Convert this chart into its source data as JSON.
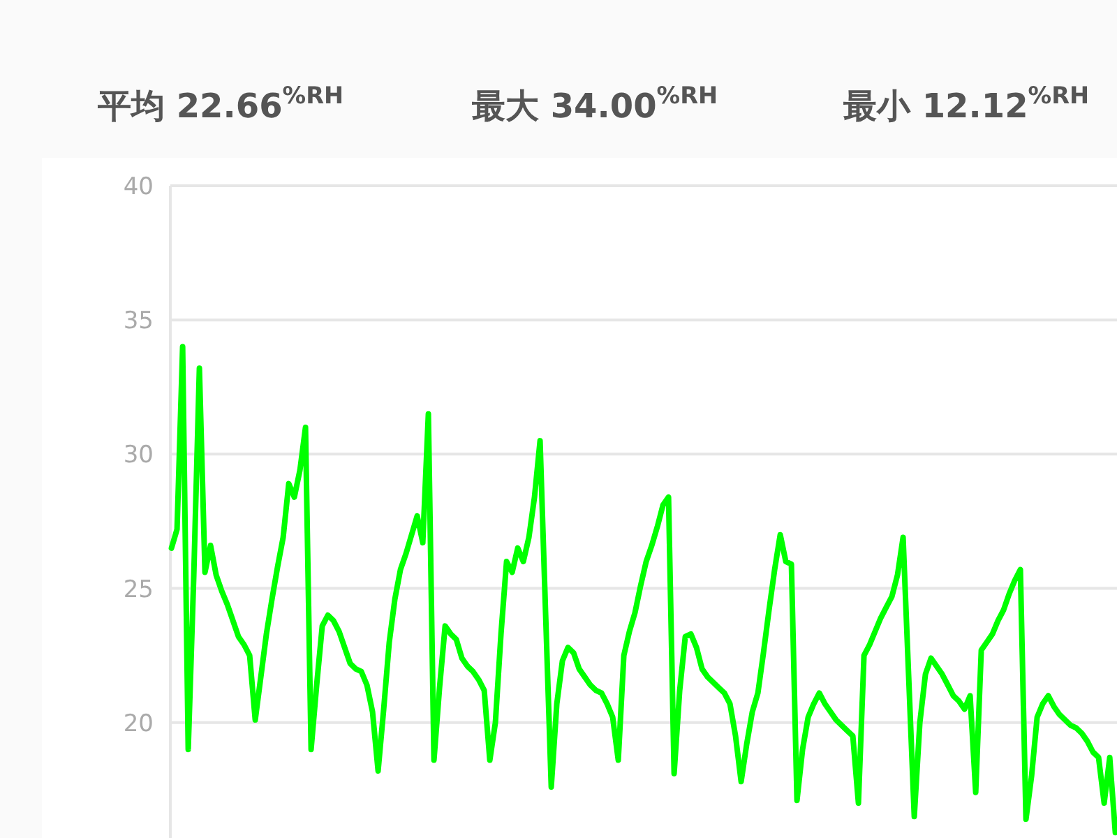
{
  "chart_data": {
    "type": "line",
    "annotations": [
      "平均 22.66$^{%RH}$",
      "最大 34.00$^{%RH}$",
      "最小 12.12$^{%RH}$"
    ],
    "categories": [
      null,
      null,
      null,
      null,
      null,
      null,
      null,
      null,
      null,
      null,
      null,
      null,
      null,
      null,
      null,
      null,
      null,
      null,
      null,
      null,
      null,
      null,
      null,
      null,
      null,
      null,
      null,
      null,
      null,
      null,
      null,
      null,
      null,
      null,
      null,
      null,
      null,
      null,
      null,
      null,
      null,
      null,
      null,
      null,
      null,
      null,
      null,
      null,
      null,
      null,
      null,
      null,
      null,
      null,
      null,
      null,
      null,
      null,
      null,
      null,
      null,
      null,
      null,
      null,
      null,
      null,
      null,
      null,
      null,
      null,
      null,
      null,
      null,
      null,
      null,
      null,
      null,
      null,
      null,
      null,
      null,
      null,
      null,
      null,
      null,
      null,
      null,
      null,
      null,
      null,
      null,
      null,
      null,
      null,
      null,
      null,
      null,
      null,
      null,
      null,
      null,
      null,
      null,
      null,
      null,
      null,
      null,
      null,
      null,
      null,
      null,
      null,
      null,
      null,
      null,
      null,
      null,
      null,
      null,
      null,
      null,
      null,
      null,
      null,
      null,
      null,
      null,
      null,
      null,
      null,
      null,
      null,
      null,
      null,
      null,
      null,
      null,
      null,
      null,
      null,
      null,
      null,
      null,
      null,
      null,
      null,
      null,
      null,
      null,
      null,
      null,
      null,
      null,
      null,
      null,
      null,
      null,
      null,
      null,
      null,
      null,
      null,
      null,
      null,
      null,
      null,
      null,
      null,
      null,
      null
    ],
    "values": [
      26.5,
      27.2,
      34.0,
      19.0,
      25.5,
      33.2,
      25.6,
      26.6,
      25.5,
      24.9,
      24.4,
      23.8,
      23.2,
      22.9,
      22.5,
      20.1,
      21.7,
      23.3,
      24.6,
      25.8,
      26.9,
      28.9,
      28.4,
      29.4,
      31.0,
      19.0,
      21.4,
      23.6,
      24.0,
      23.8,
      23.4,
      22.8,
      22.2,
      22.0,
      21.9,
      21.4,
      20.4,
      18.2,
      20.5,
      23.0,
      24.6,
      25.7,
      26.3,
      27.0,
      27.7,
      26.7,
      31.5,
      18.6,
      21.3,
      23.6,
      23.3,
      23.1,
      22.4,
      22.1,
      21.9,
      21.6,
      21.2,
      18.6,
      20.0,
      23.3,
      26.0,
      25.6,
      26.5,
      26.0,
      26.9,
      28.4,
      30.5,
      24.0,
      17.6,
      20.7,
      22.3,
      22.8,
      22.6,
      22.0,
      21.7,
      21.4,
      21.2,
      21.1,
      20.7,
      20.2,
      18.6,
      22.5,
      23.4,
      24.1,
      25.1,
      26.0,
      26.6,
      27.3,
      28.1,
      28.4,
      18.1,
      21.2,
      23.2,
      23.3,
      22.8,
      22.0,
      21.7,
      21.5,
      21.3,
      21.1,
      20.7,
      19.5,
      17.8,
      19.2,
      20.4,
      21.1,
      22.6,
      24.2,
      25.7,
      27.0,
      26.0,
      25.9,
      17.1,
      19.0,
      20.2,
      20.7,
      21.1,
      20.7,
      20.4,
      20.1,
      19.9,
      19.7,
      19.5,
      17.0,
      22.5,
      22.9,
      23.4,
      23.9,
      24.3,
      24.7,
      25.5,
      26.9,
      21.7,
      16.5,
      20.0,
      21.8,
      22.4,
      22.1,
      21.8,
      21.4,
      21.0,
      20.8,
      20.5,
      21.0,
      17.4,
      22.7,
      23.0,
      23.3,
      23.8,
      24.2,
      24.8,
      25.3,
      25.7,
      16.4,
      18.0,
      20.2,
      20.7,
      21.0,
      20.6,
      20.3,
      20.1,
      19.9,
      19.8,
      19.6,
      19.3,
      18.9,
      18.7,
      17.0,
      18.7,
      15.9
    ],
    "color": "#00ff00",
    "ylim": [
      15.7,
      40
    ],
    "yticks": [
      20,
      25,
      30,
      35,
      40
    ],
    "grid": "y"
  }
}
